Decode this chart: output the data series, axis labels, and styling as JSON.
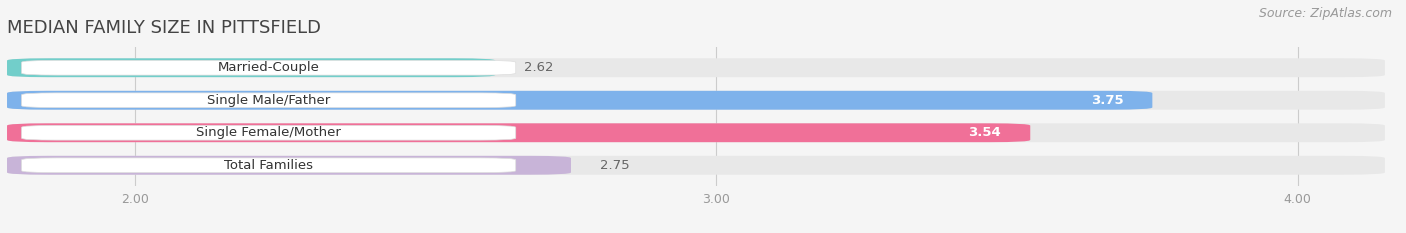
{
  "title": "MEDIAN FAMILY SIZE IN PITTSFIELD",
  "source": "Source: ZipAtlas.com",
  "categories": [
    "Married-Couple",
    "Single Male/Father",
    "Single Female/Mother",
    "Total Families"
  ],
  "values": [
    2.62,
    3.75,
    3.54,
    2.75
  ],
  "bar_colors": [
    "#72ceca",
    "#7eb2eb",
    "#f07098",
    "#c8b4d8"
  ],
  "bar_bg_color": "#e8e8e8",
  "value_colors": [
    "#666666",
    "#ffffff",
    "#ffffff",
    "#666666"
  ],
  "value_inside": [
    false,
    true,
    true,
    false
  ],
  "xlim": [
    1.78,
    4.15
  ],
  "xticks": [
    2.0,
    3.0,
    4.0
  ],
  "xtick_labels": [
    "2.00",
    "3.00",
    "4.00"
  ],
  "bar_height": 0.58,
  "figsize": [
    14.06,
    2.33
  ],
  "dpi": 100,
  "bg_color": "#f5f5f5",
  "label_fontsize": 9.5,
  "value_fontsize": 9.5,
  "title_fontsize": 13,
  "source_fontsize": 9
}
